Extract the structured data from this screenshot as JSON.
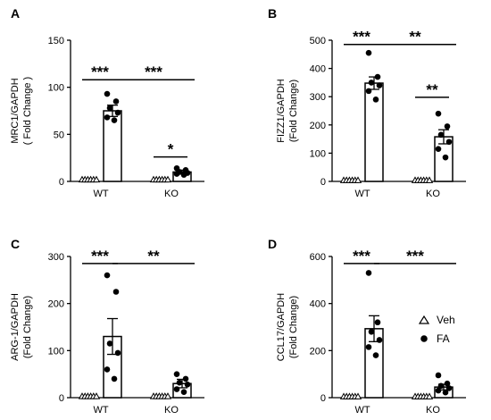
{
  "chart_data": [
    {
      "type": "bar",
      "panel": "A",
      "categories": [
        "WT",
        "KO"
      ],
      "ylabel_line1": "MRC1/GAPDH",
      "ylabel_line2": "( Fold Change )",
      "ylim": [
        0,
        150
      ],
      "yticks": [
        0,
        50,
        100,
        150
      ],
      "series": [
        {
          "key": "Veh",
          "values": [
            1,
            1
          ],
          "err": [
            0,
            0
          ],
          "points": [
            [
              1,
              1,
              1,
              1,
              1,
              1
            ],
            [
              1,
              1,
              1,
              1,
              1,
              1
            ]
          ]
        },
        {
          "key": "FA",
          "values": [
            75,
            10
          ],
          "err": [
            6,
            2
          ],
          "points": [
            [
              93,
              85,
              78,
              73,
              68,
              65
            ],
            [
              14,
              12,
              10,
              9,
              8,
              7
            ]
          ]
        }
      ],
      "annotations": [
        {
          "from": [
            0,
            0
          ],
          "to": [
            0,
            1
          ],
          "y": 108,
          "text": "***"
        },
        {
          "from": [
            0,
            1
          ],
          "to": [
            1,
            1
          ],
          "y": 108,
          "text": "***"
        },
        {
          "from": [
            1,
            0
          ],
          "to": [
            1,
            1
          ],
          "y": 26,
          "text": "*"
        }
      ]
    },
    {
      "type": "bar",
      "panel": "B",
      "categories": [
        "WT",
        "KO"
      ],
      "ylabel_line1": "FIZZ1/GAPDH",
      "ylabel_line2": "(Fold Change)",
      "ylim": [
        0,
        500
      ],
      "yticks": [
        0,
        100,
        200,
        300,
        400,
        500
      ],
      "series": [
        {
          "key": "Veh",
          "values": [
            1,
            1
          ],
          "err": [
            0,
            0
          ],
          "points": [
            [
              1,
              1,
              1,
              1,
              1,
              1
            ],
            [
              1,
              1,
              1,
              1,
              1,
              1
            ]
          ]
        },
        {
          "key": "FA",
          "values": [
            348,
            158
          ],
          "err": [
            22,
            25
          ],
          "points": [
            [
              455,
              370,
              350,
              340,
              320,
              290
            ],
            [
              240,
              195,
              165,
              140,
              115,
              85
            ]
          ]
        }
      ],
      "annotations": [
        {
          "from": [
            0,
            0
          ],
          "to": [
            0,
            1
          ],
          "y": 485,
          "text": "***"
        },
        {
          "from": [
            0,
            1
          ],
          "to": [
            1,
            1
          ],
          "y": 485,
          "text": "**"
        },
        {
          "from": [
            1,
            0
          ],
          "to": [
            1,
            1
          ],
          "y": 298,
          "text": "**"
        }
      ]
    },
    {
      "type": "bar",
      "panel": "C",
      "categories": [
        "WT",
        "KO"
      ],
      "ylabel_line1": "ARG-1/GAPDH",
      "ylabel_line2": "(Fold Change)",
      "ylim": [
        0,
        300
      ],
      "yticks": [
        0,
        100,
        200,
        300
      ],
      "series": [
        {
          "key": "Veh",
          "values": [
            1,
            1
          ],
          "err": [
            0,
            0
          ],
          "points": [
            [
              1,
              1,
              1,
              1,
              1,
              1
            ],
            [
              1,
              1,
              1,
              1,
              1,
              1
            ]
          ]
        },
        {
          "key": "FA",
          "values": [
            130,
            30
          ],
          "err": [
            38,
            9
          ],
          "points": [
            [
              260,
              225,
              115,
              95,
              60,
              40
            ],
            [
              50,
              40,
              32,
              28,
              18,
              12
            ]
          ]
        }
      ],
      "annotations": [
        {
          "from": [
            0,
            0
          ],
          "to": [
            0,
            1
          ],
          "y": 285,
          "text": "***"
        },
        {
          "from": [
            0,
            1
          ],
          "to": [
            1,
            1
          ],
          "y": 285,
          "text": "**"
        }
      ]
    },
    {
      "type": "bar",
      "panel": "D",
      "categories": [
        "WT",
        "KO"
      ],
      "ylabel_line1": "CCL17/GAPDH",
      "ylabel_line2": "(Fold Change)",
      "ylim": [
        0,
        600
      ],
      "yticks": [
        0,
        200,
        400,
        600
      ],
      "series": [
        {
          "key": "Veh",
          "values": [
            1,
            1
          ],
          "err": [
            0,
            0
          ],
          "points": [
            [
              1,
              1,
              1,
              1,
              1,
              1
            ],
            [
              1,
              1,
              1,
              1,
              1,
              1
            ]
          ]
        },
        {
          "key": "FA",
          "values": [
            293,
            45
          ],
          "err": [
            55,
            12
          ],
          "points": [
            [
              530,
              320,
              280,
              245,
              215,
              180
            ],
            [
              95,
              60,
              50,
              40,
              30,
              22
            ]
          ]
        }
      ],
      "annotations": [
        {
          "from": [
            0,
            0
          ],
          "to": [
            0,
            1
          ],
          "y": 570,
          "text": "***"
        },
        {
          "from": [
            0,
            1
          ],
          "to": [
            1,
            1
          ],
          "y": 570,
          "text": "***"
        }
      ]
    }
  ],
  "legend": {
    "items": [
      {
        "marker": "triangle",
        "label": "Veh"
      },
      {
        "marker": "circle",
        "label": "FA"
      }
    ],
    "placement": "panel D, right"
  }
}
